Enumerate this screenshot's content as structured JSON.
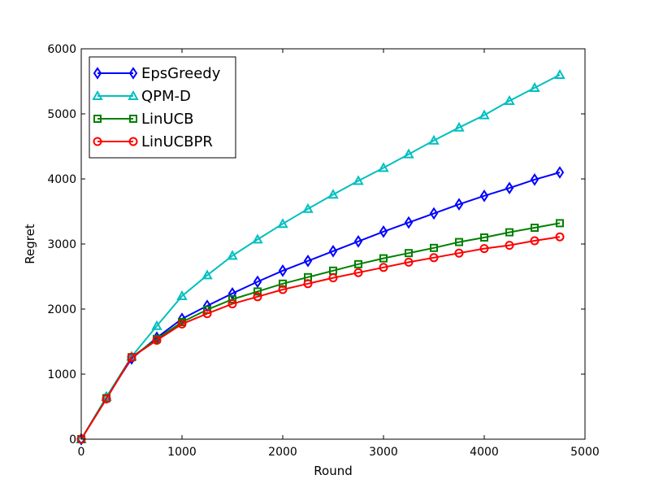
{
  "chart_data": {
    "type": "line",
    "title": "",
    "xlabel": "Round",
    "ylabel": "Regret",
    "xlim": [
      0,
      5000
    ],
    "ylim": [
      0,
      6000
    ],
    "xticks": [
      0,
      1000,
      2000,
      3000,
      4000,
      5000
    ],
    "yticks": [
      0,
      1000,
      2000,
      3000,
      4000,
      5000,
      6000
    ],
    "grid": false,
    "legend_position": "upper-left",
    "x": [
      0,
      250,
      500,
      750,
      1000,
      1250,
      1500,
      1750,
      2000,
      2250,
      2500,
      2750,
      3000,
      3250,
      3500,
      3750,
      4000,
      4250,
      4500,
      4750
    ],
    "series": [
      {
        "name": "EpsGreedy",
        "color": "#0000ff",
        "marker": "diamond",
        "values": [
          0,
          640,
          1240,
          1560,
          1850,
          2050,
          2240,
          2420,
          2590,
          2740,
          2890,
          3040,
          3190,
          3330,
          3470,
          3610,
          3740,
          3860,
          3990,
          4100
        ]
      },
      {
        "name": "QPM-D",
        "color": "#00bfbf",
        "marker": "triangle",
        "values": [
          0,
          650,
          1270,
          1740,
          2200,
          2520,
          2820,
          3070,
          3310,
          3540,
          3760,
          3970,
          4170,
          4380,
          4590,
          4790,
          4980,
          5200,
          5400,
          5600
        ]
      },
      {
        "name": "LinUCB",
        "color": "#008000",
        "marker": "square",
        "values": [
          0,
          630,
          1260,
          1540,
          1800,
          1990,
          2150,
          2270,
          2390,
          2490,
          2590,
          2690,
          2780,
          2860,
          2940,
          3030,
          3100,
          3180,
          3250,
          3320
        ]
      },
      {
        "name": "LinUCBPR",
        "color": "#ff0000",
        "marker": "circle",
        "values": [
          0,
          620,
          1260,
          1520,
          1770,
          1930,
          2080,
          2190,
          2300,
          2390,
          2480,
          2560,
          2640,
          2720,
          2790,
          2860,
          2930,
          2980,
          3050,
          3110
        ]
      }
    ]
  }
}
